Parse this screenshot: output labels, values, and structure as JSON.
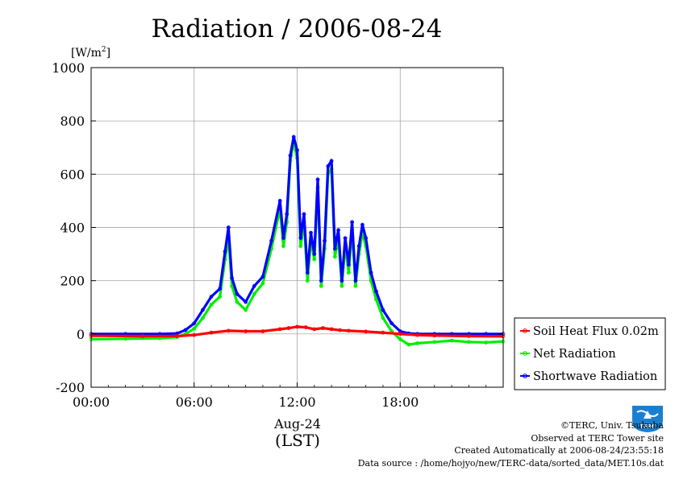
{
  "chart_data": {
    "type": "line",
    "title": "Radiation / 2006-08-24",
    "ylabel_unit": "[W/m",
    "ylabel_unit_sup": "2",
    "ylabel_unit_close": "]",
    "xlabel_date": "Aug-24",
    "xlabel_zone": "(LST)",
    "ylim": [
      -200,
      1000
    ],
    "xlim": [
      0,
      24
    ],
    "yticks": [
      "-200",
      "0",
      "200",
      "400",
      "600",
      "800",
      "1000"
    ],
    "ytick_values": [
      -200,
      0,
      200,
      400,
      600,
      800,
      1000
    ],
    "xticks": [
      "00:00",
      "06:00",
      "12:00",
      "18:00"
    ],
    "xtick_values": [
      0,
      6,
      12,
      18
    ],
    "grid": true,
    "legend_position": "right-lower-outside",
    "series": [
      {
        "name": "Soil Heat Flux 0.02m",
        "color": "#ff0000",
        "x": [
          0,
          3,
          5,
          6,
          7,
          8,
          9,
          10,
          11,
          11.5,
          12,
          12.5,
          13,
          13.5,
          14,
          14.5,
          15,
          16,
          17,
          18,
          19,
          20,
          22,
          24
        ],
        "y": [
          -7,
          -8,
          -8,
          -4,
          5,
          12,
          10,
          10,
          18,
          22,
          27,
          25,
          18,
          22,
          18,
          14,
          12,
          9,
          5,
          0,
          -4,
          -6,
          -8,
          -9
        ]
      },
      {
        "name": "Net Radiation",
        "color": "#00ee00",
        "x": [
          0,
          2,
          4,
          5,
          5.5,
          6,
          6.5,
          7,
          7.5,
          7.8,
          8,
          8.2,
          8.5,
          9,
          9.5,
          10,
          10.5,
          11,
          11.2,
          11.4,
          11.6,
          11.8,
          12,
          12.2,
          12.4,
          12.6,
          12.8,
          13,
          13.2,
          13.4,
          13.6,
          13.8,
          14,
          14.2,
          14.4,
          14.6,
          14.8,
          15,
          15.2,
          15.4,
          15.6,
          15.8,
          16,
          16.3,
          16.6,
          17,
          17.5,
          18,
          18.5,
          19,
          20,
          21,
          22,
          23,
          24
        ],
        "y": [
          -20,
          -18,
          -16,
          -12,
          0,
          20,
          60,
          110,
          140,
          280,
          360,
          180,
          120,
          90,
          150,
          190,
          320,
          470,
          330,
          420,
          650,
          720,
          660,
          330,
          420,
          200,
          350,
          280,
          550,
          180,
          320,
          600,
          620,
          290,
          360,
          180,
          330,
          230,
          390,
          180,
          300,
          380,
          330,
          200,
          130,
          60,
          10,
          -20,
          -40,
          -35,
          -30,
          -25,
          -30,
          -32,
          -28
        ]
      },
      {
        "name": "Shortwave Radiation",
        "color": "#0000ff",
        "x": [
          0,
          2,
          4,
          5,
          5.5,
          6,
          6.5,
          7,
          7.5,
          7.8,
          8,
          8.2,
          8.5,
          9,
          9.5,
          10,
          10.5,
          11,
          11.2,
          11.4,
          11.6,
          11.8,
          12,
          12.2,
          12.4,
          12.6,
          12.8,
          13,
          13.2,
          13.4,
          13.6,
          13.8,
          14,
          14.2,
          14.4,
          14.6,
          14.8,
          15,
          15.2,
          15.4,
          15.6,
          15.8,
          16,
          16.3,
          16.6,
          17,
          17.5,
          18,
          18.5,
          19,
          20,
          21,
          22,
          23,
          24
        ],
        "y": [
          0,
          0,
          0,
          2,
          15,
          40,
          90,
          140,
          170,
          310,
          400,
          210,
          150,
          120,
          180,
          215,
          350,
          500,
          360,
          450,
          670,
          740,
          690,
          360,
          450,
          230,
          380,
          300,
          580,
          200,
          350,
          630,
          650,
          320,
          390,
          200,
          360,
          260,
          420,
          200,
          330,
          410,
          360,
          230,
          160,
          90,
          40,
          10,
          2,
          0,
          0,
          0,
          0,
          0,
          0
        ]
      }
    ]
  },
  "credits": {
    "copyright": "©TERC, Univ. Tsukuba",
    "observed": "Observed at TERC Tower site",
    "created": "Created Automatically at 2006-08-24/23:55:18",
    "source": "Data source : /home/hojyo/new/TERC-data/sorted_data/MET.10s.dat"
  },
  "logo": {
    "text": "TERC",
    "color": "#1a7fd0"
  }
}
